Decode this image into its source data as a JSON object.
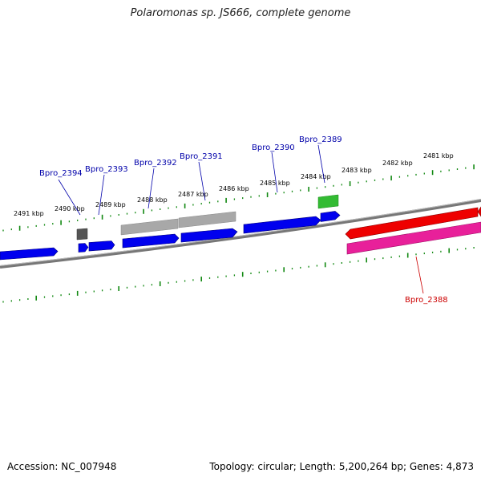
{
  "title": "Polaromonas sp. JS666, complete genome",
  "footer": {
    "accession": "Accession: NC_007948",
    "summary": "Topology: circular; Length: 5,200,264 bp; Genes: 4,873"
  },
  "colors": {
    "forward_cds": "#0000ee",
    "reverse_cds": "#ee0000",
    "reverse_pink": "#e8209a",
    "gray_feature": "#a8a8a8",
    "dark_feature": "#555555",
    "green_feature": "#33bb33",
    "backbone": "#777777",
    "ticks": "#118811",
    "label_forward": "#0000aa",
    "label_reverse": "#cc0000"
  },
  "ruler": {
    "labels": [
      "2491 kbp",
      "2490 kbp",
      "2489 kbp",
      "2488 kbp",
      "2487 kbp",
      "2486 kbp",
      "2485 kbp",
      "2484 kbp",
      "2483 kbp",
      "2482 kbp",
      "2481 kbp"
    ]
  },
  "gene_labels": [
    {
      "id": "Bpro_2394",
      "strand": "forward"
    },
    {
      "id": "Bpro_2393",
      "strand": "forward"
    },
    {
      "id": "Bpro_2392",
      "strand": "forward"
    },
    {
      "id": "Bpro_2391",
      "strand": "forward"
    },
    {
      "id": "Bpro_2390",
      "strand": "forward"
    },
    {
      "id": "Bpro_2389",
      "strand": "forward"
    },
    {
      "id": "Bpro_2388",
      "strand": "reverse"
    }
  ]
}
